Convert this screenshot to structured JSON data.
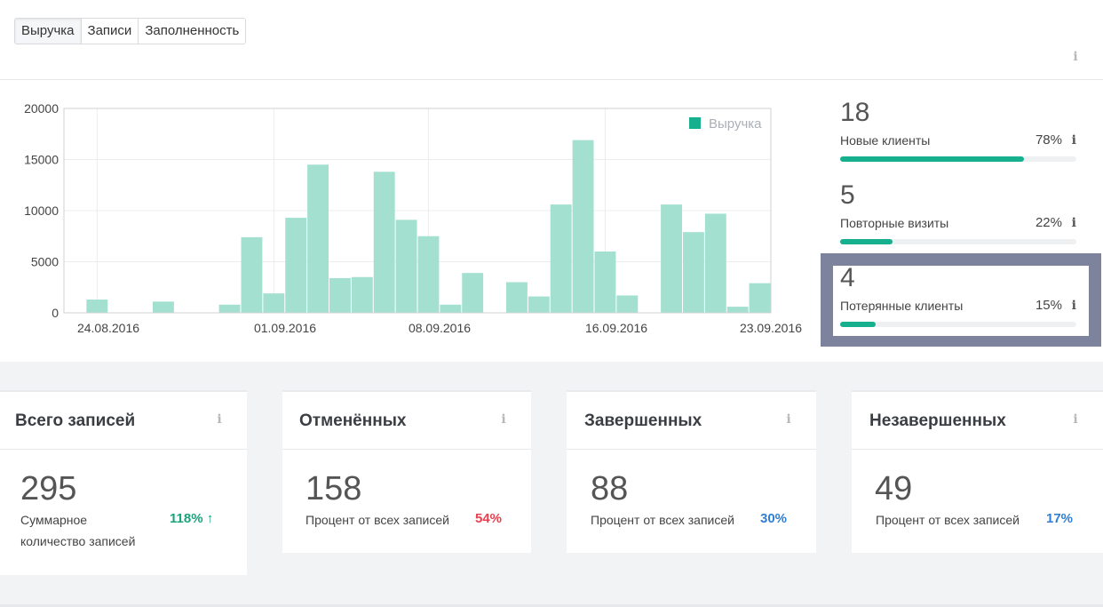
{
  "tabs": [
    {
      "label": "Выручка",
      "active": true
    },
    {
      "label": "Записи",
      "active": false
    },
    {
      "label": "Заполненность",
      "active": false
    }
  ],
  "info_icon": "info-icon",
  "chart_data": {
    "type": "bar",
    "legend": [
      "Выручка"
    ],
    "legend_position": "top-right",
    "grid": true,
    "ylim": [
      0,
      20000
    ],
    "yticks": [
      "0",
      "5000",
      "10000",
      "15000",
      "20000"
    ],
    "xticks": [
      "24.08.2016",
      "01.09.2016",
      "08.09.2016",
      "16.09.2016",
      "23.09.2016"
    ],
    "color": "#a3e0d0",
    "values": [
      0,
      1300,
      0,
      0,
      1100,
      0,
      0,
      800,
      7400,
      1900,
      9300,
      14500,
      3400,
      3500,
      13800,
      9100,
      7500,
      800,
      3900,
      0,
      3000,
      1600,
      10600,
      16900,
      6000,
      1700,
      0,
      10600,
      7900,
      9700,
      600,
      2900
    ]
  },
  "stats": [
    {
      "value": "18",
      "label": "Новые клиенты",
      "percent": "78%",
      "fill": 0.78
    },
    {
      "value": "5",
      "label": "Повторные визиты",
      "percent": "22%",
      "fill": 0.22
    },
    {
      "value": "4",
      "label": "Потерянные клиенты",
      "percent": "15%",
      "fill": 0.15
    }
  ],
  "cards": [
    {
      "title": "Всего записей",
      "value": "295",
      "sub_line1": "Суммарное",
      "sub_line2": "количество записей",
      "pct": "118%",
      "pct_color": "#1aa37a",
      "arrow": "↑"
    },
    {
      "title": "Отменённых",
      "value": "158",
      "sub": "Процент от всех записей",
      "pct": "54%",
      "pct_color": "#e8404e"
    },
    {
      "title": "Завершенных",
      "value": "88",
      "sub": "Процент от всех записей",
      "pct": "30%",
      "pct_color": "#2f7fd6"
    },
    {
      "title": "Незавершенных",
      "value": "49",
      "sub": "Процент от всех записей",
      "pct": "17%",
      "pct_color": "#2f7fd6"
    }
  ]
}
